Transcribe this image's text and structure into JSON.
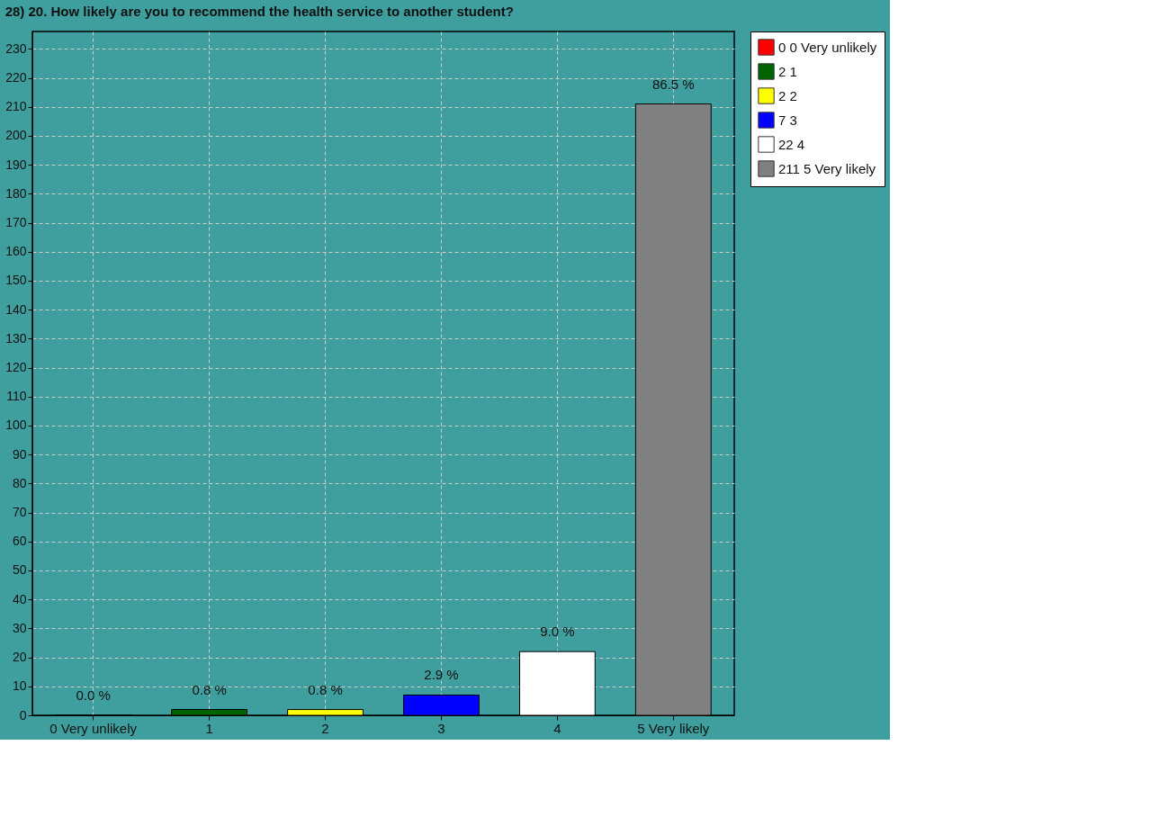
{
  "chart_data": {
    "type": "bar",
    "title": "28) 20. How likely are you to recommend the health service to another student?",
    "categories": [
      "0 Very unlikely",
      "1",
      "2",
      "3",
      "4",
      "5 Very likely"
    ],
    "series": [
      {
        "name": "0 0 Very unlikely",
        "color": "#ff0000",
        "values": [
          0,
          null,
          null,
          null,
          null,
          null
        ]
      },
      {
        "name": "2 1",
        "color": "#006400",
        "values": [
          null,
          2,
          null,
          null,
          null,
          null
        ]
      },
      {
        "name": "2 2",
        "color": "#ffff00",
        "values": [
          null,
          null,
          2,
          null,
          null,
          null
        ]
      },
      {
        "name": "7 3",
        "color": "#0000ff",
        "values": [
          null,
          null,
          null,
          7,
          null,
          null
        ]
      },
      {
        "name": "22 4",
        "color": "#ffffff",
        "values": [
          null,
          null,
          null,
          null,
          22,
          null
        ]
      },
      {
        "name": "211 5 Very likely",
        "color": "#808080",
        "values": [
          null,
          null,
          null,
          null,
          null,
          211
        ]
      }
    ],
    "annotations": [
      {
        "text": "0.0 %",
        "x": "0 Very unlikely",
        "y": 0
      },
      {
        "text": "0.8 %",
        "x": "1",
        "y": 2
      },
      {
        "text": "0.8 %",
        "x": "2",
        "y": 2
      },
      {
        "text": "2.9 %",
        "x": "3",
        "y": 7
      },
      {
        "text": "9.0 %",
        "x": "4",
        "y": 22
      },
      {
        "text": "86.5 %",
        "x": "5 Very likely",
        "y": 211
      }
    ],
    "ylim": [
      0,
      236
    ],
    "yticks": [
      0,
      10,
      20,
      30,
      40,
      50,
      60,
      70,
      80,
      90,
      100,
      110,
      120,
      130,
      140,
      150,
      160,
      170,
      180,
      190,
      200,
      210,
      220,
      230
    ],
    "grid": true,
    "legend": "top right"
  }
}
